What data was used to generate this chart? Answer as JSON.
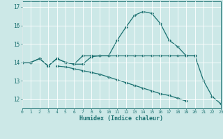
{
  "x_all": [
    0,
    1,
    2,
    3,
    4,
    5,
    6,
    7,
    8,
    9,
    10,
    11,
    12,
    13,
    14,
    15,
    16,
    17,
    18,
    19,
    20,
    21,
    22,
    23
  ],
  "line1": [
    14.0,
    14.0,
    14.2,
    13.8,
    14.2,
    14.0,
    13.9,
    13.9,
    14.3,
    14.35,
    14.35,
    15.2,
    15.9,
    16.55,
    16.75,
    16.65,
    16.1,
    15.2,
    14.85,
    14.35,
    14.35,
    13.0,
    12.15,
    11.75
  ],
  "line2": [
    14.0,
    14.0,
    14.2,
    13.8,
    14.2,
    14.0,
    13.9,
    14.35,
    14.35,
    14.35,
    14.35,
    14.35,
    14.35,
    14.35,
    14.35,
    14.35,
    14.35,
    14.35,
    14.35,
    14.35,
    14.35,
    null,
    null,
    null
  ],
  "line3": [
    14.0,
    14.0,
    null,
    null,
    13.8,
    13.75,
    13.65,
    13.55,
    13.45,
    13.35,
    13.2,
    13.05,
    12.9,
    12.75,
    12.6,
    12.45,
    12.3,
    12.2,
    12.05,
    11.9,
    null,
    null,
    null,
    null
  ],
  "color": "#1a7070",
  "bg_color": "#cce8e7",
  "grid_color": "#ffffff",
  "xlabel": "Humidex (Indice chaleur)",
  "xlim": [
    0,
    23
  ],
  "ylim": [
    11.5,
    17.3
  ],
  "yticks": [
    12,
    13,
    14,
    15,
    16,
    17
  ],
  "xticks": [
    0,
    1,
    2,
    3,
    4,
    5,
    6,
    7,
    8,
    9,
    10,
    11,
    12,
    13,
    14,
    15,
    16,
    17,
    18,
    19,
    20,
    21,
    22,
    23
  ]
}
